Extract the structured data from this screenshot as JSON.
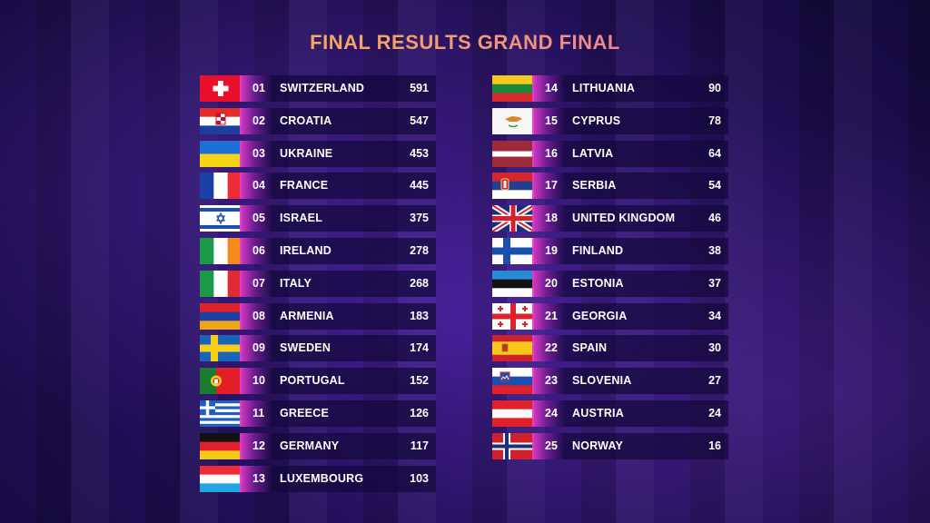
{
  "title": "FINAL RESULTS GRAND FINAL",
  "left_column": [
    {
      "position": "01",
      "country": "SWITZERLAND",
      "points": "591",
      "flag": "flag-switzerland"
    },
    {
      "position": "02",
      "country": "CROATIA",
      "points": "547",
      "flag": "flag-croatia"
    },
    {
      "position": "03",
      "country": "UKRAINE",
      "points": "453",
      "flag": "flag-ukraine"
    },
    {
      "position": "04",
      "country": "FRANCE",
      "points": "445",
      "flag": "flag-france"
    },
    {
      "position": "05",
      "country": "ISRAEL",
      "points": "375",
      "flag": "flag-israel"
    },
    {
      "position": "06",
      "country": "IRELAND",
      "points": "278",
      "flag": "flag-ireland"
    },
    {
      "position": "07",
      "country": "ITALY",
      "points": "268",
      "flag": "flag-italy"
    },
    {
      "position": "08",
      "country": "ARMENIA",
      "points": "183",
      "flag": "flag-armenia"
    },
    {
      "position": "09",
      "country": "SWEDEN",
      "points": "174",
      "flag": "flag-sweden"
    },
    {
      "position": "10",
      "country": "PORTUGAL",
      "points": "152",
      "flag": "flag-portugal"
    },
    {
      "position": "11",
      "country": "GREECE",
      "points": "126",
      "flag": "flag-greece"
    },
    {
      "position": "12",
      "country": "GERMANY",
      "points": "117",
      "flag": "flag-germany"
    },
    {
      "position": "13",
      "country": "LUXEMBOURG",
      "points": "103",
      "flag": "flag-luxembourg"
    }
  ],
  "right_column": [
    {
      "position": "14",
      "country": "LITHUANIA",
      "points": "90",
      "flag": "flag-lithuania"
    },
    {
      "position": "15",
      "country": "CYPRUS",
      "points": "78",
      "flag": "flag-cyprus"
    },
    {
      "position": "16",
      "country": "LATVIA",
      "points": "64",
      "flag": "flag-latvia"
    },
    {
      "position": "17",
      "country": "SERBIA",
      "points": "54",
      "flag": "flag-serbia"
    },
    {
      "position": "18",
      "country": "UNITED KINGDOM",
      "points": "46",
      "flag": "flag-united-kingdom"
    },
    {
      "position": "19",
      "country": "FINLAND",
      "points": "38",
      "flag": "flag-finland"
    },
    {
      "position": "20",
      "country": "ESTONIA",
      "points": "37",
      "flag": "flag-estonia"
    },
    {
      "position": "21",
      "country": "GEORGIA",
      "points": "34",
      "flag": "flag-georgia"
    },
    {
      "position": "22",
      "country": "SPAIN",
      "points": "30",
      "flag": "flag-spain"
    },
    {
      "position": "23",
      "country": "SLOVENIA",
      "points": "27",
      "flag": "flag-slovenia"
    },
    {
      "position": "24",
      "country": "AUSTRIA",
      "points": "24",
      "flag": "flag-austria"
    },
    {
      "position": "25",
      "country": "NORWAY",
      "points": "16",
      "flag": "flag-norway"
    }
  ]
}
